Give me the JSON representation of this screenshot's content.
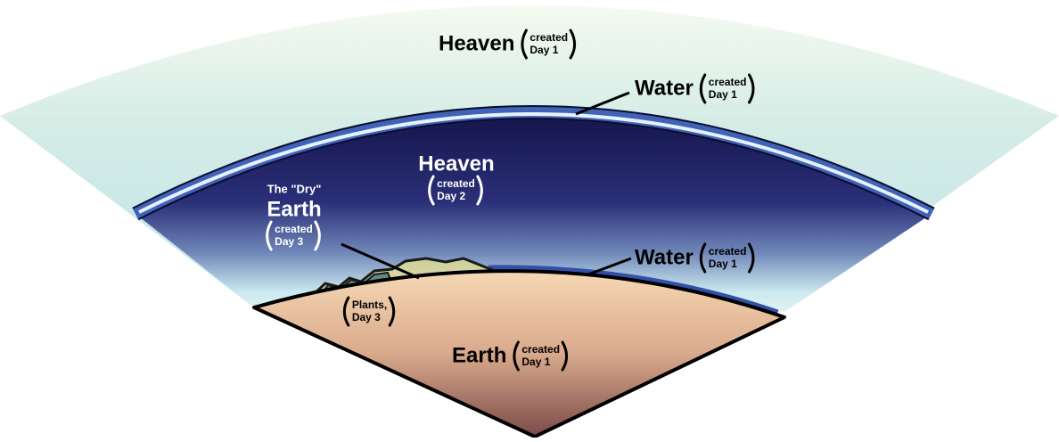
{
  "labels": [
    {
      "main": "Heaven",
      "note": [
        "created",
        "Day 1"
      ]
    },
    {
      "main": "Water",
      "note": [
        "created",
        "Day 1"
      ]
    },
    {
      "main": "Heaven",
      "note": [
        "created",
        "Day 2"
      ]
    },
    {
      "pre": "The \"Dry\"",
      "main": "Earth",
      "note": [
        "created",
        "Day 3"
      ]
    },
    {
      "main": "Water",
      "note": [
        "created",
        "Day 1"
      ]
    },
    {
      "note": [
        "Plants,",
        "Day 3"
      ]
    },
    {
      "main": "Earth",
      "note": [
        "created",
        "Day 1"
      ]
    }
  ]
}
